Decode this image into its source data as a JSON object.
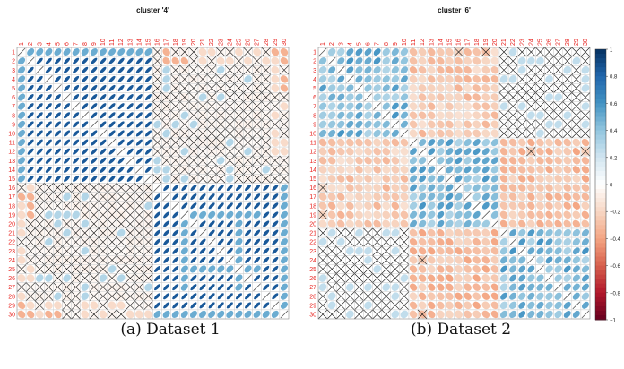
{
  "captions": [
    "(a) Dataset 1",
    "(b) Dataset 2"
  ],
  "colors": {
    "label_red": "#e8231f",
    "scale_neg": [
      "#ffffff",
      "#f7d7c4",
      "#f4a582",
      "#d6604d",
      "#b2182b",
      "#67001f"
    ],
    "scale_pos": [
      "#ffffff",
      "#d1e5f0",
      "#92c5de",
      "#4393c3",
      "#2166ac",
      "#053061"
    ],
    "grid": "#cfcfcf",
    "cross": "#111111"
  },
  "chart_data": [
    {
      "type": "heatmap",
      "subtype": "correlation-ellipse",
      "title": "cluster '4'",
      "n": 30,
      "labels": [
        "1",
        "2",
        "3",
        "4",
        "5",
        "6",
        "7",
        "8",
        "9",
        "10",
        "11",
        "12",
        "13",
        "14",
        "15",
        "16",
        "17",
        "18",
        "19",
        "20",
        "21",
        "22",
        "23",
        "24",
        "25",
        "26",
        "27",
        "28",
        "29",
        "30"
      ],
      "groups": [
        {
          "from": 1,
          "to": 15
        },
        {
          "from": 16,
          "to": 30
        }
      ],
      "within_group_correlation": 0.85,
      "between_group_correlation": -0.05,
      "between_group_mostly_non_significant": true,
      "strong_negative_cells": [
        [
          1,
          17
        ],
        [
          1,
          29
        ],
        [
          1,
          30
        ],
        [
          30,
          2
        ],
        [
          30,
          4
        ],
        [
          30,
          5
        ],
        [
          17,
          2
        ],
        [
          18,
          2
        ],
        [
          19,
          2
        ]
      ],
      "legend": "none"
    },
    {
      "type": "heatmap",
      "subtype": "correlation-ellipse",
      "title": "cluster '6'",
      "n": 30,
      "labels": [
        "1",
        "2",
        "3",
        "4",
        "5",
        "6",
        "7",
        "8",
        "9",
        "10",
        "11",
        "12",
        "13",
        "14",
        "15",
        "16",
        "17",
        "18",
        "19",
        "20",
        "21",
        "22",
        "23",
        "24",
        "25",
        "26",
        "27",
        "28",
        "29",
        "30"
      ],
      "groups": [
        {
          "from": 1,
          "to": 10
        },
        {
          "from": 11,
          "to": 20
        },
        {
          "from": 21,
          "to": 30
        }
      ],
      "within_group_correlation": 0.45,
      "pair_correlations": {
        "1-2": -0.25,
        "1-3": 0.0,
        "2-3": -0.3
      },
      "pair_1_3_non_significant": true,
      "extra_crosses": [
        [
          1,
          16
        ],
        [
          1,
          19
        ],
        [
          12,
          24
        ],
        [
          12,
          30
        ],
        [
          16,
          1
        ],
        [
          19,
          1
        ],
        [
          24,
          12
        ],
        [
          30,
          12
        ],
        [
          10,
          24
        ],
        [
          10,
          27
        ],
        [
          10,
          28
        ]
      ],
      "legend": "right",
      "colorbar_ticks": [
        "1",
        "0.8",
        "0.6",
        "0.4",
        "0.2",
        "0",
        "−0.2",
        "−0.4",
        "−0.6",
        "−0.8",
        "−1"
      ]
    }
  ]
}
